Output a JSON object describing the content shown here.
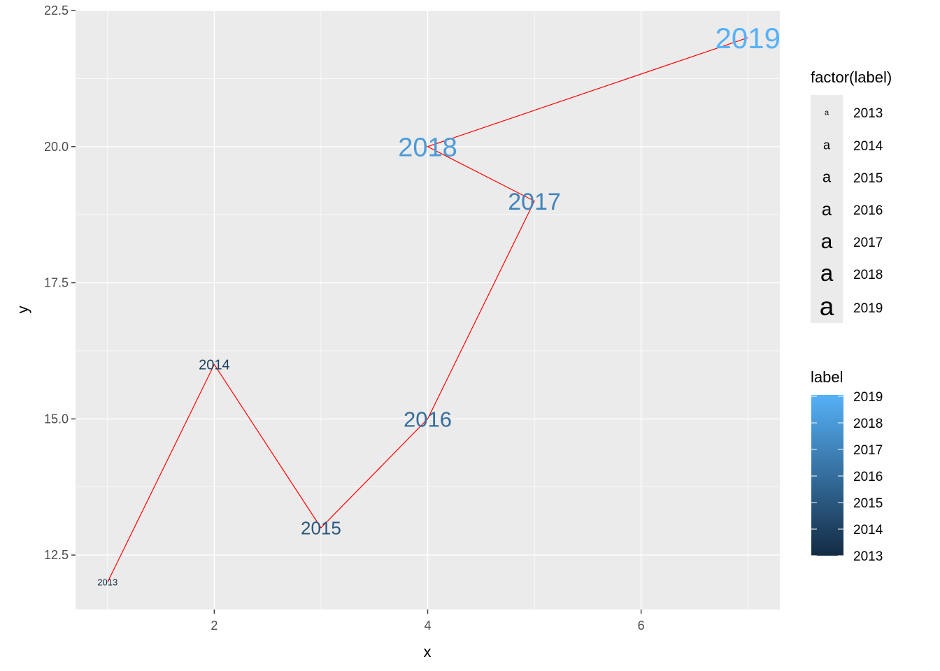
{
  "chart_data": {
    "type": "line",
    "x": [
      1,
      2,
      3,
      4,
      5,
      4,
      7
    ],
    "y": [
      12,
      16,
      13,
      15,
      19,
      20,
      22
    ],
    "labels": [
      "2013",
      "2014",
      "2015",
      "2016",
      "2017",
      "2018",
      "2019"
    ],
    "line_color": "#ff0000",
    "panel_color": "#ebebeb",
    "xlabel": "x",
    "ylabel": "y",
    "xlim": [
      0.7,
      7.3
    ],
    "ylim": [
      11.5,
      22.5
    ],
    "x_ticks": [
      2,
      4,
      6
    ],
    "y_ticks": [
      12.5,
      15.0,
      17.5,
      20.0,
      22.5
    ],
    "y_tick_labels": [
      "12.5",
      "15.0",
      "17.5",
      "20.0",
      "22.5"
    ],
    "grid": true,
    "legend_placement": "right",
    "legends": {
      "size": {
        "title": "factor(label)",
        "key_glyph": "a",
        "entries": [
          "2013",
          "2014",
          "2015",
          "2016",
          "2017",
          "2018",
          "2019"
        ]
      },
      "color": {
        "title": "label",
        "breaks": [
          "2019",
          "2018",
          "2017",
          "2016",
          "2015",
          "2014",
          "2013"
        ],
        "low_color": "#132b43",
        "high_color": "#56b1f7"
      }
    }
  }
}
